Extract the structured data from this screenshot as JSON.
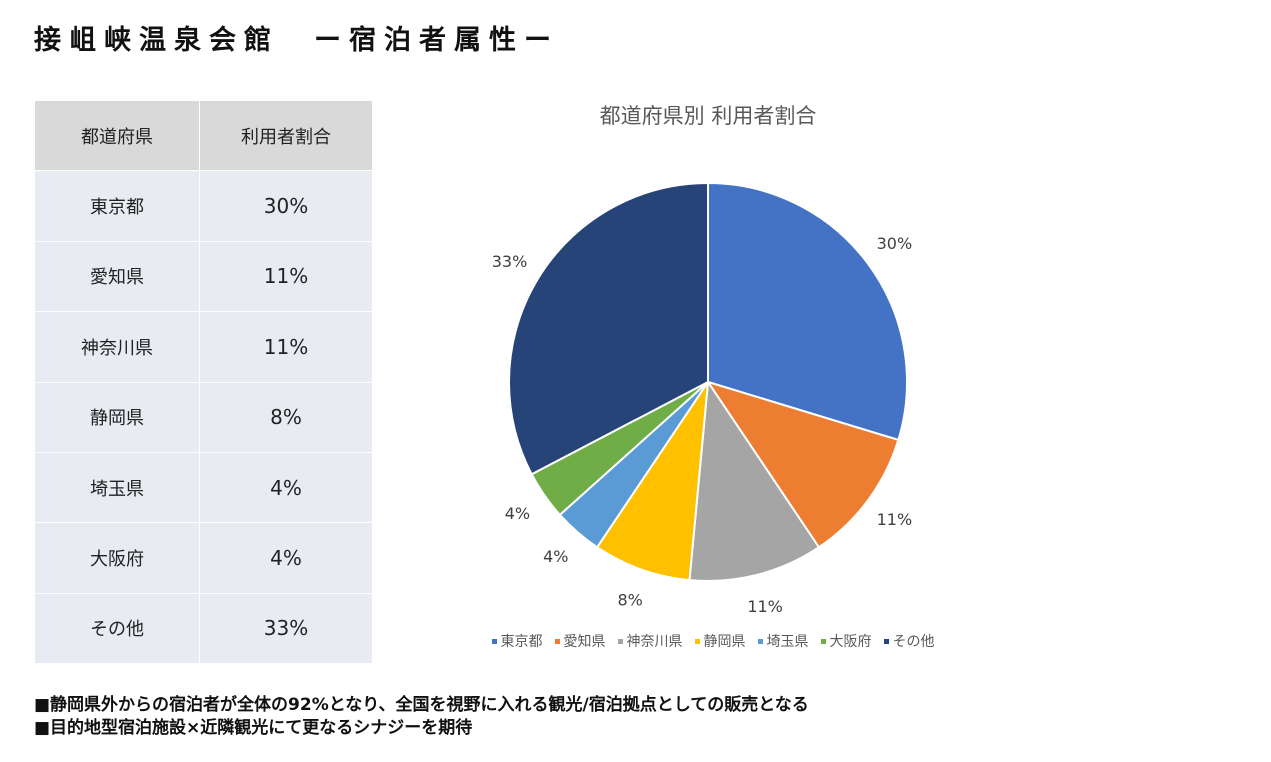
{
  "page": {
    "title": "接岨峡温泉会館　ー宿泊者属性ー"
  },
  "table": {
    "headers": [
      "都道府県",
      "利用者割合"
    ],
    "rows": [
      {
        "pref": "東京都",
        "pct": "30%"
      },
      {
        "pref": "愛知県",
        "pct": "11%"
      },
      {
        "pref": "神奈川県",
        "pct": "11%"
      },
      {
        "pref": "静岡県",
        "pct": "8%"
      },
      {
        "pref": "埼玉県",
        "pct": "4%"
      },
      {
        "pref": "大阪府",
        "pct": "4%"
      },
      {
        "pref": "その他",
        "pct": "33%"
      }
    ]
  },
  "chart_data": {
    "type": "pie",
    "title": "都道府県別 利用者割合",
    "categories": [
      "東京都",
      "愛知県",
      "神奈川県",
      "静岡県",
      "埼玉県",
      "大阪府",
      "その他"
    ],
    "values": [
      30,
      11,
      11,
      8,
      4,
      4,
      33
    ],
    "labels": [
      "30%",
      "11%",
      "11%",
      "8%",
      "4%",
      "4%",
      "33%"
    ],
    "colors": [
      "#4472c4",
      "#ed7d31",
      "#a5a5a5",
      "#ffc000",
      "#5b9bd5",
      "#70ad47",
      "#264478"
    ],
    "legend_position": "bottom"
  },
  "notes": [
    "■静岡県外からの宿泊者が全体の92%となり、全国を視野に入れる観光/宿泊拠点としての販売となる",
    "■目的地型宿泊施設×近隣観光にて更なるシナジーを期待"
  ]
}
